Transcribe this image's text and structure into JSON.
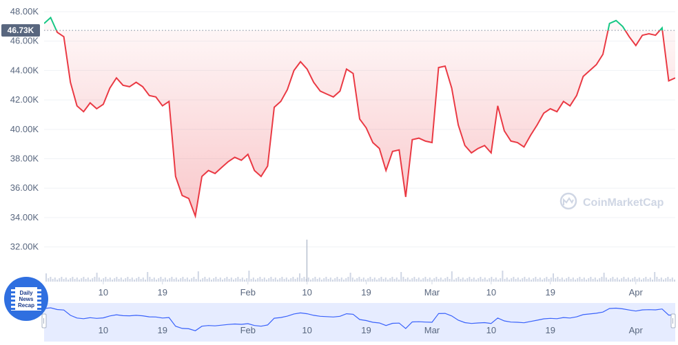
{
  "watermark": {
    "text": "CoinMarketCap",
    "icon": "coinmarketcap-logo-icon"
  },
  "badge": {
    "lines": [
      "Daily",
      "News",
      "Recap"
    ],
    "icon": "film-news-icon"
  },
  "current_price_label": "46.73K",
  "colors": {
    "line_below": "#ea3943",
    "line_above": "#16c784",
    "area_fill": "#ea3943",
    "navigator_line": "#3861fb",
    "navigator_fill": "#e6ecff",
    "badge_bg": "#2f6fe0",
    "grid": "#eff2f5",
    "volume": "#cfd6e4"
  },
  "chart_data": {
    "type": "line",
    "title": "",
    "xlabel": "",
    "ylabel": "",
    "ylim": [
      31000,
      48000
    ],
    "xlim": [
      "2022-01-01",
      "2022-04-07"
    ],
    "y_ticks": [
      32000,
      34000,
      36000,
      38000,
      40000,
      42000,
      44000,
      46000,
      48000
    ],
    "y_tick_labels": [
      "32.00K",
      "34.00K",
      "36.00K",
      "38.00K",
      "40.00K",
      "42.00K",
      "44.00K",
      "46.00K",
      "48.00K"
    ],
    "x_ticks": [
      "2022-01-10",
      "2022-01-19",
      "2022-02-01",
      "2022-02-10",
      "2022-02-19",
      "2022-03-01",
      "2022-03-10",
      "2022-03-19",
      "2022-04-01"
    ],
    "x_tick_labels": [
      "10",
      "19",
      "Feb",
      "10",
      "19",
      "Mar",
      "10",
      "19",
      "Apr"
    ],
    "reference_line": 46730,
    "grid": true,
    "legend": "none",
    "series": [
      {
        "x": [
          "2022-01-01",
          "2022-01-02",
          "2022-01-03",
          "2022-01-04",
          "2022-01-05",
          "2022-01-06",
          "2022-01-07",
          "2022-01-08",
          "2022-01-09",
          "2022-01-10",
          "2022-01-11",
          "2022-01-12",
          "2022-01-13",
          "2022-01-14",
          "2022-01-15",
          "2022-01-16",
          "2022-01-17",
          "2022-01-18",
          "2022-01-19",
          "2022-01-20",
          "2022-01-21",
          "2022-01-22",
          "2022-01-23",
          "2022-01-24",
          "2022-01-25",
          "2022-01-26",
          "2022-01-27",
          "2022-01-28",
          "2022-01-29",
          "2022-01-30",
          "2022-01-31",
          "2022-02-01",
          "2022-02-02",
          "2022-02-03",
          "2022-02-04",
          "2022-02-05",
          "2022-02-06",
          "2022-02-07",
          "2022-02-08",
          "2022-02-09",
          "2022-02-10",
          "2022-02-11",
          "2022-02-12",
          "2022-02-13",
          "2022-02-14",
          "2022-02-15",
          "2022-02-16",
          "2022-02-17",
          "2022-02-18",
          "2022-02-19",
          "2022-02-20",
          "2022-02-21",
          "2022-02-22",
          "2022-02-23",
          "2022-02-24",
          "2022-02-25",
          "2022-02-26",
          "2022-02-27",
          "2022-02-28",
          "2022-03-01",
          "2022-03-02",
          "2022-03-03",
          "2022-03-04",
          "2022-03-05",
          "2022-03-06",
          "2022-03-07",
          "2022-03-08",
          "2022-03-09",
          "2022-03-10",
          "2022-03-11",
          "2022-03-12",
          "2022-03-13",
          "2022-03-14",
          "2022-03-15",
          "2022-03-16",
          "2022-03-17",
          "2022-03-18",
          "2022-03-19",
          "2022-03-20",
          "2022-03-21",
          "2022-03-22",
          "2022-03-23",
          "2022-03-24",
          "2022-03-25",
          "2022-03-26",
          "2022-03-27",
          "2022-03-28",
          "2022-03-29",
          "2022-03-30",
          "2022-03-31",
          "2022-04-01",
          "2022-04-02",
          "2022-04-03",
          "2022-04-04",
          "2022-04-05",
          "2022-04-06",
          "2022-04-07"
        ],
        "y": [
          47200,
          47600,
          46600,
          46300,
          43200,
          41600,
          41200,
          41800,
          41400,
          41700,
          42800,
          43500,
          43000,
          42900,
          43200,
          42900,
          42300,
          42200,
          41600,
          41900,
          36800,
          35500,
          35300,
          34100,
          36800,
          37200,
          37000,
          37400,
          37800,
          38100,
          37900,
          38300,
          37200,
          36800,
          37500,
          41500,
          41900,
          42700,
          44000,
          44600,
          44100,
          43200,
          42600,
          42400,
          42200,
          42600,
          44100,
          43800,
          40700,
          40100,
          39100,
          38700,
          37200,
          38500,
          38600,
          35400,
          39300,
          39400,
          39200,
          39100,
          44200,
          44300,
          42800,
          40300,
          38900,
          38400,
          38700,
          38900,
          38400,
          41600,
          39900,
          39200,
          39100,
          38800,
          39600,
          40300,
          41100,
          41400,
          41200,
          41900,
          41600,
          42300,
          43600,
          44000,
          44400,
          45100,
          47200,
          47400,
          47000,
          46300,
          45700,
          46400,
          46500,
          46400,
          46900,
          43300,
          43500
        ]
      }
    ]
  }
}
